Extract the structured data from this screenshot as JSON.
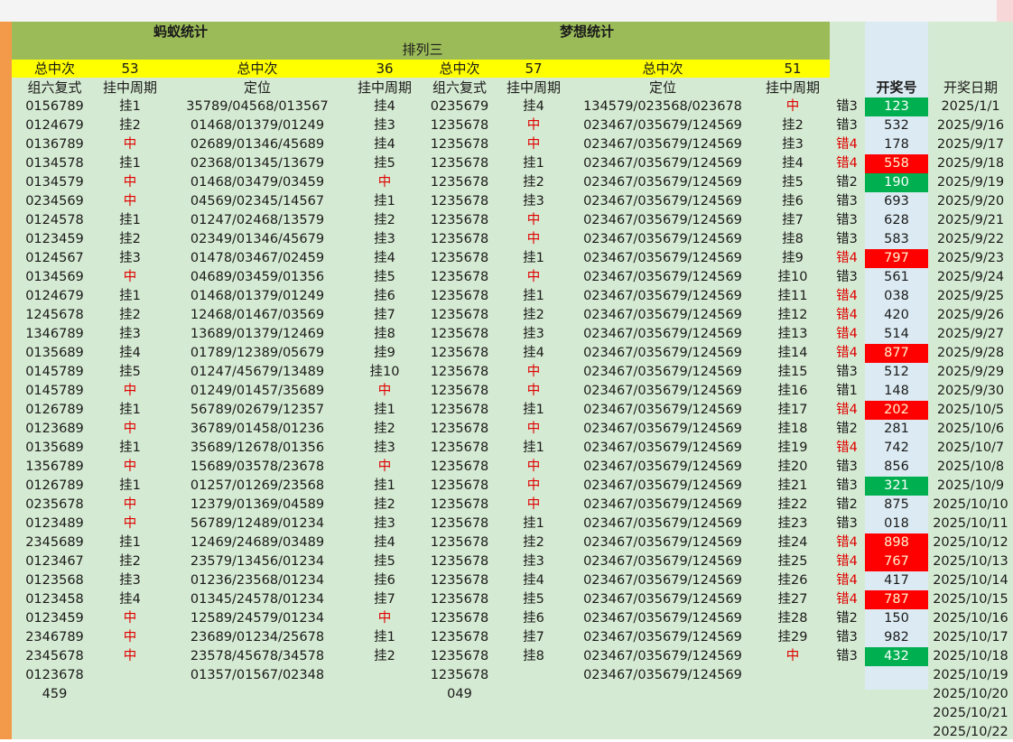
{
  "titles": {
    "left_section": "蚂蚁统计",
    "right_section": "梦想统计",
    "lottery_name": "排列三"
  },
  "summary": {
    "label": "总中次",
    "ant_group6_hits": "53",
    "ant_position_hits": "36",
    "dream_group6_hits": "57",
    "dream_position_hits": "51"
  },
  "columns": {
    "ant_group6": "组六复式",
    "ant_group6_cycle": "挂中周期",
    "ant_position": "定位",
    "ant_position_cycle": "挂中周期",
    "dream_group6": "组六复式",
    "dream_group6_cycle": "挂中周期",
    "dream_position": "定位",
    "dream_position_cycle": "挂中周期",
    "draw_number": "开奖号",
    "draw_date": "开奖日期"
  },
  "colors": {
    "hit_text": "#e00000",
    "header_green": "#9bbb59",
    "header_yellow": "#ffff00",
    "sheet_green": "#d5ead2",
    "draw_column": "#dcebf3",
    "mark_red": "#ff0000",
    "mark_green": "#00b050"
  },
  "rows": [
    {
      "a1": "0156789",
      "a2": "挂1",
      "a3": "35789/04568/013567",
      "a4": "挂4",
      "d1": "0235679",
      "d2": "挂4",
      "d3": "134579/023568/023678",
      "d4": "中",
      "err": "错3",
      "num": "123",
      "mark": "green",
      "date": "2025/1/1"
    },
    {
      "a1": "0124679",
      "a2": "挂2",
      "a3": "01468/01379/01249",
      "a4": "挂3",
      "d1": "1235678",
      "d2": "中",
      "d3": "023467/035679/124569",
      "d4": "挂2",
      "err": "错3",
      "num": "532",
      "mark": "",
      "date": "2025/9/16"
    },
    {
      "a1": "0136789",
      "a2": "中",
      "a3": "02689/01346/45689",
      "a4": "挂4",
      "d1": "1235678",
      "d2": "中",
      "d3": "023467/035679/124569",
      "d4": "挂3",
      "err": "错4",
      "num": "178",
      "mark": "",
      "date": "2025/9/17"
    },
    {
      "a1": "0134578",
      "a2": "挂1",
      "a3": "02368/01345/13679",
      "a4": "挂5",
      "d1": "1235678",
      "d2": "挂1",
      "d3": "023467/035679/124569",
      "d4": "挂4",
      "err": "错4",
      "num": "558",
      "mark": "red",
      "date": "2025/9/18"
    },
    {
      "a1": "0134579",
      "a2": "中",
      "a3": "01468/03479/03459",
      "a4": "中",
      "d1": "1235678",
      "d2": "挂2",
      "d3": "023467/035679/124569",
      "d4": "挂5",
      "err": "错2",
      "num": "190",
      "mark": "green",
      "date": "2025/9/19"
    },
    {
      "a1": "0234569",
      "a2": "中",
      "a3": "04569/02345/14567",
      "a4": "挂1",
      "d1": "1235678",
      "d2": "挂3",
      "d3": "023467/035679/124569",
      "d4": "挂6",
      "err": "错3",
      "num": "693",
      "mark": "",
      "date": "2025/9/20"
    },
    {
      "a1": "0124578",
      "a2": "挂1",
      "a3": "01247/02468/13579",
      "a4": "挂2",
      "d1": "1235678",
      "d2": "中",
      "d3": "023467/035679/124569",
      "d4": "挂7",
      "err": "错3",
      "num": "628",
      "mark": "",
      "date": "2025/9/21"
    },
    {
      "a1": "0123459",
      "a2": "挂2",
      "a3": "02349/01346/45679",
      "a4": "挂3",
      "d1": "1235678",
      "d2": "中",
      "d3": "023467/035679/124569",
      "d4": "挂8",
      "err": "错3",
      "num": "583",
      "mark": "",
      "date": "2025/9/22"
    },
    {
      "a1": "0124567",
      "a2": "挂3",
      "a3": "01478/03467/02459",
      "a4": "挂4",
      "d1": "1235678",
      "d2": "挂1",
      "d3": "023467/035679/124569",
      "d4": "挂9",
      "err": "错4",
      "num": "797",
      "mark": "red",
      "date": "2025/9/23"
    },
    {
      "a1": "0134569",
      "a2": "中",
      "a3": "04689/03459/01356",
      "a4": "挂5",
      "d1": "1235678",
      "d2": "中",
      "d3": "023467/035679/124569",
      "d4": "挂10",
      "err": "错3",
      "num": "561",
      "mark": "",
      "date": "2025/9/24"
    },
    {
      "a1": "0124679",
      "a2": "挂1",
      "a3": "01468/01379/01249",
      "a4": "挂6",
      "d1": "1235678",
      "d2": "挂1",
      "d3": "023467/035679/124569",
      "d4": "挂11",
      "err": "错4",
      "num": "038",
      "mark": "",
      "date": "2025/9/25"
    },
    {
      "a1": "1245678",
      "a2": "挂2",
      "a3": "12468/01467/03569",
      "a4": "挂7",
      "d1": "1235678",
      "d2": "挂2",
      "d3": "023467/035679/124569",
      "d4": "挂12",
      "err": "错4",
      "num": "420",
      "mark": "",
      "date": "2025/9/26"
    },
    {
      "a1": "1346789",
      "a2": "挂3",
      "a3": "13689/01379/12469",
      "a4": "挂8",
      "d1": "1235678",
      "d2": "挂3",
      "d3": "023467/035679/124569",
      "d4": "挂13",
      "err": "错4",
      "num": "514",
      "mark": "",
      "date": "2025/9/27"
    },
    {
      "a1": "0135689",
      "a2": "挂4",
      "a3": "01789/12389/05679",
      "a4": "挂9",
      "d1": "1235678",
      "d2": "挂4",
      "d3": "023467/035679/124569",
      "d4": "挂14",
      "err": "错4",
      "num": "877",
      "mark": "red",
      "date": "2025/9/28"
    },
    {
      "a1": "0145789",
      "a2": "挂5",
      "a3": "01247/45679/13489",
      "a4": "挂10",
      "d1": "1235678",
      "d2": "中",
      "d3": "023467/035679/124569",
      "d4": "挂15",
      "err": "错3",
      "num": "512",
      "mark": "",
      "date": "2025/9/29"
    },
    {
      "a1": "0145789",
      "a2": "中",
      "a3": "01249/01457/35689",
      "a4": "中",
      "d1": "1235678",
      "d2": "中",
      "d3": "023467/035679/124569",
      "d4": "挂16",
      "err": "错1",
      "num": "148",
      "mark": "",
      "date": "2025/9/30"
    },
    {
      "a1": "0126789",
      "a2": "挂1",
      "a3": "56789/02679/12357",
      "a4": "挂1",
      "d1": "1235678",
      "d2": "挂1",
      "d3": "023467/035679/124569",
      "d4": "挂17",
      "err": "错4",
      "num": "202",
      "mark": "red",
      "date": "2025/10/5"
    },
    {
      "a1": "0123689",
      "a2": "中",
      "a3": "36789/01458/01236",
      "a4": "挂2",
      "d1": "1235678",
      "d2": "中",
      "d3": "023467/035679/124569",
      "d4": "挂18",
      "err": "错2",
      "num": "281",
      "mark": "",
      "date": "2025/10/6"
    },
    {
      "a1": "0135689",
      "a2": "挂1",
      "a3": "35689/12678/01356",
      "a4": "挂3",
      "d1": "1235678",
      "d2": "挂1",
      "d3": "023467/035679/124569",
      "d4": "挂19",
      "err": "错4",
      "num": "742",
      "mark": "",
      "date": "2025/10/7"
    },
    {
      "a1": "1356789",
      "a2": "中",
      "a3": "15689/03578/23678",
      "a4": "中",
      "d1": "1235678",
      "d2": "中",
      "d3": "023467/035679/124569",
      "d4": "挂20",
      "err": "错3",
      "num": "856",
      "mark": "",
      "date": "2025/10/8"
    },
    {
      "a1": "0126789",
      "a2": "挂1",
      "a3": "01257/01269/23568",
      "a4": "挂1",
      "d1": "1235678",
      "d2": "中",
      "d3": "023467/035679/124569",
      "d4": "挂21",
      "err": "错3",
      "num": "321",
      "mark": "green",
      "date": "2025/10/9"
    },
    {
      "a1": "0235678",
      "a2": "中",
      "a3": "12379/01369/04589",
      "a4": "挂2",
      "d1": "1235678",
      "d2": "中",
      "d3": "023467/035679/124569",
      "d4": "挂22",
      "err": "错2",
      "num": "875",
      "mark": "",
      "date": "2025/10/10"
    },
    {
      "a1": "0123489",
      "a2": "中",
      "a3": "56789/12489/01234",
      "a4": "挂3",
      "d1": "1235678",
      "d2": "挂1",
      "d3": "023467/035679/124569",
      "d4": "挂23",
      "err": "错3",
      "num": "018",
      "mark": "",
      "date": "2025/10/11"
    },
    {
      "a1": "2345689",
      "a2": "挂1",
      "a3": "12469/24689/03489",
      "a4": "挂4",
      "d1": "1235678",
      "d2": "挂2",
      "d3": "023467/035679/124569",
      "d4": "挂24",
      "err": "错4",
      "num": "898",
      "mark": "red",
      "date": "2025/10/12"
    },
    {
      "a1": "0123467",
      "a2": "挂2",
      "a3": "23579/13456/01234",
      "a4": "挂5",
      "d1": "1235678",
      "d2": "挂3",
      "d3": "023467/035679/124569",
      "d4": "挂25",
      "err": "错4",
      "num": "767",
      "mark": "red",
      "date": "2025/10/13"
    },
    {
      "a1": "0123568",
      "a2": "挂3",
      "a3": "01236/23568/01234",
      "a4": "挂6",
      "d1": "1235678",
      "d2": "挂4",
      "d3": "023467/035679/124569",
      "d4": "挂26",
      "err": "错4",
      "num": "417",
      "mark": "",
      "date": "2025/10/14"
    },
    {
      "a1": "0123458",
      "a2": "挂4",
      "a3": "01345/24578/01234",
      "a4": "挂7",
      "d1": "1235678",
      "d2": "挂5",
      "d3": "023467/035679/124569",
      "d4": "挂27",
      "err": "错4",
      "num": "787",
      "mark": "red",
      "date": "2025/10/15"
    },
    {
      "a1": "0123459",
      "a2": "中",
      "a3": "12589/24579/01234",
      "a4": "中",
      "d1": "1235678",
      "d2": "挂6",
      "d3": "023467/035679/124569",
      "d4": "挂28",
      "err": "错2",
      "num": "150",
      "mark": "",
      "date": "2025/10/16"
    },
    {
      "a1": "2346789",
      "a2": "中",
      "a3": "23689/01234/25678",
      "a4": "挂1",
      "d1": "1235678",
      "d2": "挂7",
      "d3": "023467/035679/124569",
      "d4": "挂29",
      "err": "错3",
      "num": "982",
      "mark": "",
      "date": "2025/10/17"
    },
    {
      "a1": "2345678",
      "a2": "中",
      "a3": "23578/45678/34578",
      "a4": "挂2",
      "d1": "1235678",
      "d2": "挂8",
      "d3": "023467/035679/124569",
      "d4": "中",
      "err": "错3",
      "num": "432",
      "mark": "green",
      "date": "2025/10/18"
    },
    {
      "a1": "0123678",
      "a2": "",
      "a3": "01357/01567/02348",
      "a4": "",
      "d1": "1235678",
      "d2": "",
      "d3": "023467/035679/124569",
      "d4": "",
      "err": "",
      "num": "",
      "mark": "",
      "date": "2025/10/19"
    },
    {
      "a1": "459",
      "a2": "",
      "a3": "",
      "a4": "",
      "d1": "049",
      "d2": "",
      "d3": "",
      "d4": "",
      "err": "",
      "num": "",
      "mark": "",
      "date": "2025/10/20"
    },
    {
      "a1": "",
      "a2": "",
      "a3": "",
      "a4": "",
      "d1": "",
      "d2": "",
      "d3": "",
      "d4": "",
      "err": "",
      "num": "",
      "mark": "",
      "date": "2025/10/21"
    },
    {
      "a1": "",
      "a2": "",
      "a3": "",
      "a4": "",
      "d1": "",
      "d2": "",
      "d3": "",
      "d4": "",
      "err": "",
      "num": "",
      "mark": "",
      "date": "2025/10/22"
    }
  ]
}
